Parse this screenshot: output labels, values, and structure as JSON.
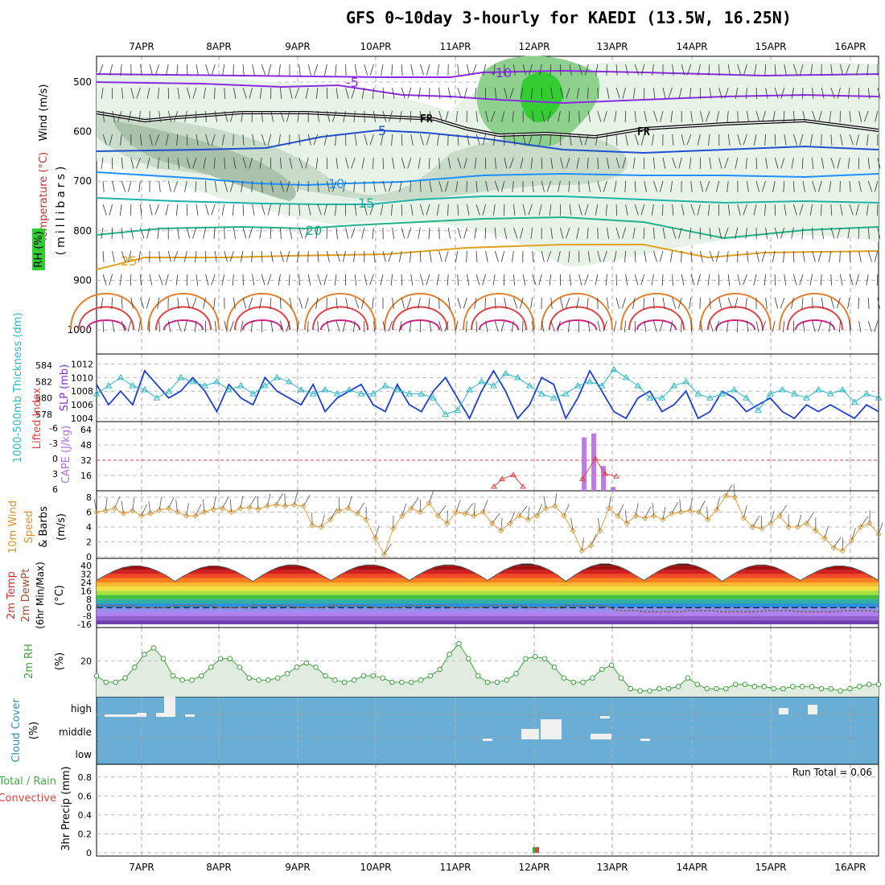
{
  "title": "GFS 0~10day 3-hourly for KAEDI (13.5W, 16.25N)",
  "dates": [
    "7APR",
    "8APR",
    "9APR",
    "10APR",
    "11APR",
    "12APR",
    "13APR",
    "14APR",
    "15APR",
    "16APR"
  ],
  "panels": {
    "upper_air": {
      "ylabel_wind": "Wind (m/s)",
      "ylabel_temp": "Temperature (°C)",
      "ylabel_rh": "RH (%)",
      "ylabel_pressure": "(millibars)",
      "pressure_ticks": [
        "500",
        "600",
        "700",
        "800",
        "900",
        "1000"
      ],
      "freezing_label": "FR"
    },
    "slp_thickness": {
      "ylabel_thick": "1000-500mb Thickness (dm)",
      "ylabel_slp": "SLP (mb)",
      "thick_ticks": [
        "584",
        "582",
        "580",
        "578"
      ],
      "slp_ticks": [
        "1012",
        "1010",
        "1008",
        "1006",
        "1004"
      ]
    },
    "cape_li": {
      "ylabel_li": "Lifted Index",
      "ylabel_cape": "CAPE (J/kg)",
      "li_ticks": [
        "-6",
        "-3",
        "0",
        "3",
        "6"
      ],
      "cape_ticks": [
        "64",
        "48",
        "32",
        "16"
      ]
    },
    "wind10m": {
      "ylabel_1": "10m Wind",
      "ylabel_2": "Speed",
      "ylabel_3": "& Barbs",
      "ylabel_unit": "(m/s)",
      "ticks": [
        "8",
        "6",
        "4",
        "2",
        "0"
      ]
    },
    "temp2m": {
      "ylabel_1": "2m Temp",
      "ylabel_2": "2m DewPt",
      "ylabel_3": "(6hr Min/Max)",
      "ylabel_unit": "(°C)",
      "ticks": [
        "40",
        "32",
        "24",
        "16",
        "8",
        "0",
        "-8",
        "-16"
      ]
    },
    "rh2m": {
      "ylabel": "2m RH",
      "ylabel_unit": "(%)",
      "ticks": [
        "20"
      ]
    },
    "cloud": {
      "ylabel": "Cloud Cover",
      "ylabel_unit": "(%)",
      "levels": [
        "high",
        "middle",
        "low"
      ]
    },
    "precip": {
      "ylabel_1": "Total / Rain",
      "ylabel_2": "Convective",
      "ylabel_3": "3hr Precip (mm)",
      "ticks": [
        "0.8",
        "0.6",
        "0.4",
        "0.2",
        "0"
      ],
      "run_total": "Run Total = 0.06"
    }
  },
  "colors": {
    "slp": "#1e3fd0",
    "thickness": "#2ab8c8",
    "cape_bar": "#c07ae8",
    "lifted_index": "#e04040",
    "wind_speed": "#e0a040",
    "rh": "#40a040",
    "rh_fill": "#e0ece0",
    "cloud_bg": "#6aaed6",
    "precip_rain": "#40b040",
    "precip_conv": "#e04040"
  },
  "chart_data": [
    {
      "type": "line",
      "title": "",
      "ylabel": "SLP (mb)",
      "series": [
        {
          "name": "SLP (mb)",
          "values": [
            1009,
            1006,
            1008,
            1006,
            1011,
            1009,
            1007,
            1008,
            1010,
            1008,
            1005,
            1009,
            1007,
            1006,
            1010,
            1008,
            1007,
            1006,
            1009,
            1005,
            1007,
            1008,
            1009,
            1006,
            1005,
            1009,
            1006,
            1005,
            1008,
            1010,
            1007,
            1004,
            1008,
            1011,
            1008,
            1004,
            1006,
            1010,
            1009,
            1004,
            1007,
            1011,
            1008,
            1005,
            1004,
            1007,
            1008,
            1005,
            1006,
            1008,
            1004,
            1005,
            1008,
            1007,
            1005,
            1006,
            1007,
            1005,
            1004,
            1006,
            1005,
            1006,
            1005,
            1004,
            1006,
            1005
          ]
        }
      ],
      "ylim": [
        1004,
        1013
      ]
    },
    {
      "type": "line",
      "ylabel": "1000-500mb Thickness (dm)",
      "series": [
        {
          "name": "1000-500mb Thickness (dm)",
          "values": [
            580.5,
            581.5,
            582.5,
            581.5,
            581,
            580,
            580.8,
            582.5,
            582,
            581.5,
            582,
            581,
            581.5,
            580.5,
            581.5,
            582.5,
            582,
            581,
            580.5,
            581,
            580.5,
            581,
            580.5,
            580.5,
            581.5,
            581,
            580.5,
            580.5,
            580,
            578,
            578.5,
            581,
            582,
            581.5,
            583,
            582.5,
            581.5,
            580.5,
            580,
            580.5,
            581.5,
            582,
            581.5,
            583.5,
            582.5,
            581.5,
            580,
            580,
            581.5,
            582,
            580.5,
            580,
            580.5,
            581,
            580,
            578.5,
            580.5,
            581,
            580.5,
            580,
            581,
            580.5,
            581,
            579.5,
            580.5,
            580
          ]
        }
      ],
      "ylim": [
        577.5,
        585
      ]
    },
    {
      "type": "bar",
      "ylabel": "CAPE (J/kg)",
      "x": [
        "12APR 15",
        "12APR 18",
        "12APR 21",
        "13APR 00"
      ],
      "values": [
        56,
        60,
        26,
        4
      ],
      "ylim": [
        0,
        64
      ]
    },
    {
      "type": "line",
      "ylabel": "Lifted Index",
      "x": [
        "11APR 15",
        "11APR 18",
        "11APR 21",
        "12APR 00",
        "12APR 15",
        "12APR 18",
        "12APR 21",
        "13APR 00"
      ],
      "values": [
        5.5,
        4,
        3.2,
        5.5,
        4,
        0,
        3,
        3.5
      ],
      "ylim": [
        6,
        -6
      ]
    },
    {
      "type": "line",
      "ylabel": "10m Wind Speed (m/s)",
      "values": [
        6,
        6.2,
        6.5,
        5.8,
        6.2,
        5.5,
        5.8,
        6.3,
        6.5,
        6,
        5.5,
        5.5,
        6,
        6.4,
        6.5,
        6,
        6.5,
        6.6,
        6.4,
        6.8,
        7,
        6.8,
        7,
        6.8,
        4.2,
        4,
        5,
        6.2,
        6.5,
        5.8,
        5,
        2.5,
        0.3,
        3.8,
        5.5,
        6.5,
        6,
        7.2,
        5.5,
        4.5,
        6,
        5.8,
        5.5,
        6,
        4.5,
        3.5,
        4.5,
        5.5,
        5,
        5.5,
        6.5,
        6.8,
        5.5,
        3.5,
        0.8,
        1.5,
        3.5,
        6.5,
        5.5,
        4.5,
        5.5,
        5.2,
        5.5,
        5,
        5.8,
        6,
        6.2,
        6,
        5,
        6.3,
        8.2,
        8,
        5.2,
        4,
        3.8,
        4.5,
        5.5,
        4,
        4,
        4.5,
        3.5,
        2.5,
        1.2,
        0.8,
        2.2,
        4,
        4.5,
        3
      ],
      "ylim": [
        0,
        8
      ]
    },
    {
      "type": "area",
      "ylabel": "2m Temp (°C)",
      "series": [
        {
          "name": "2m Temp max",
          "values": [
            40,
            40,
            41,
            41,
            41,
            42,
            42,
            42,
            41,
            40
          ]
        },
        {
          "name": "2m Temp min",
          "values": [
            26,
            25,
            25,
            26,
            26,
            26,
            25,
            26,
            25,
            26
          ]
        }
      ],
      "ylim": [
        -16,
        44
      ]
    },
    {
      "type": "line",
      "ylabel": "2m RH (%)",
      "values": [
        13,
        10,
        10,
        12,
        17,
        23,
        26,
        21,
        13,
        11,
        11,
        13,
        17,
        21,
        21,
        17,
        12,
        11,
        11,
        12,
        14,
        17,
        19,
        17,
        13,
        11,
        10,
        11,
        13,
        13,
        12,
        10,
        10,
        10,
        11,
        13,
        16,
        23,
        28,
        21,
        13,
        10,
        10,
        11,
        14,
        21,
        22,
        21,
        17,
        12,
        10,
        10,
        12,
        16,
        18,
        12,
        7,
        6,
        6,
        7,
        7,
        8,
        12,
        9,
        7,
        7,
        7,
        9,
        9,
        8,
        8,
        7,
        7,
        8,
        8,
        8,
        7,
        7,
        6,
        7,
        8,
        9,
        9
      ],
      "ylim": [
        4,
        34
      ]
    },
    {
      "type": "bar",
      "ylabel": "3hr Precip (mm)",
      "x": [
        "12APR 00"
      ],
      "values": [
        0.06
      ],
      "ylim": [
        0,
        0.9
      ]
    }
  ]
}
